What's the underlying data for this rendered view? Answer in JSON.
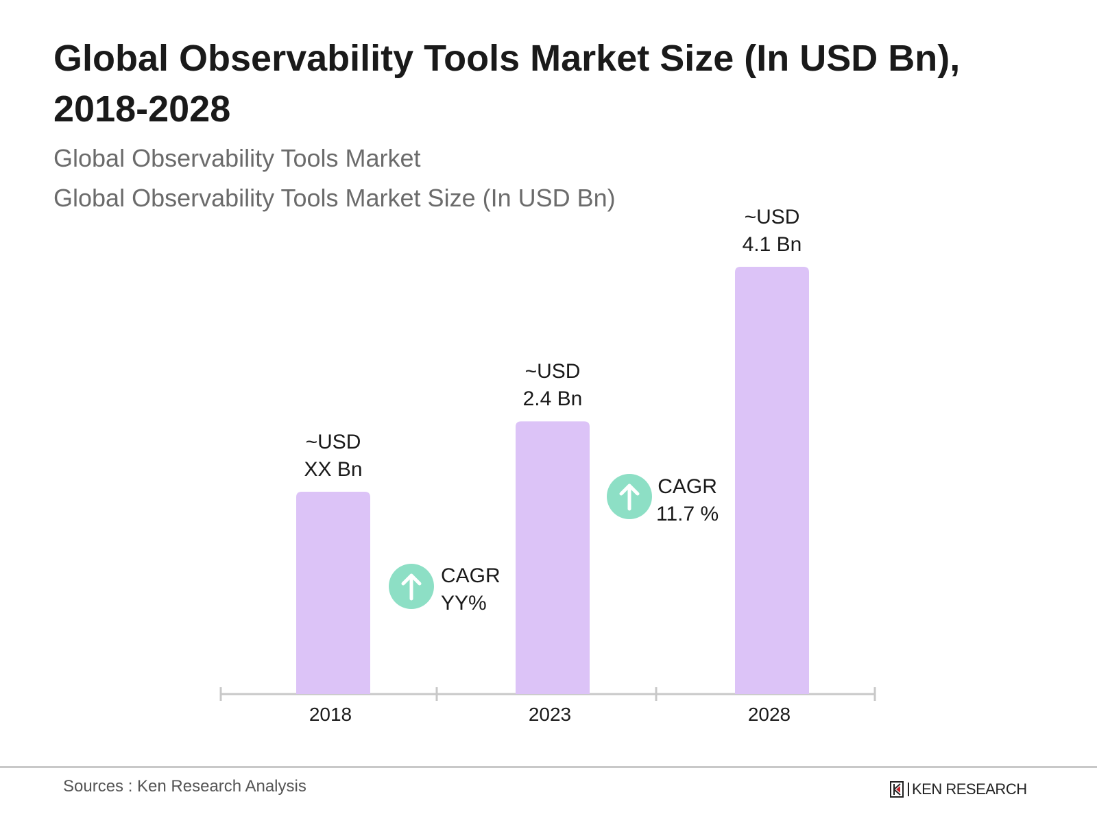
{
  "chart_data": {
    "type": "bar",
    "title": "Global Observability Tools Market Size (In USD Bn), 2018-2028",
    "subtitles": [
      "Global Observability Tools Market",
      "Global Observability Tools Market Size (In USD Bn)"
    ],
    "categories": [
      "2018",
      "2023",
      "2028"
    ],
    "values": [
      null,
      2.4,
      4.1
    ],
    "data_labels": [
      [
        "~USD",
        "XX Bn"
      ],
      [
        "~USD",
        "2.4 Bn"
      ],
      [
        "~USD",
        "4.1 Bn"
      ]
    ],
    "cagr": [
      {
        "label": "CAGR",
        "value": "YY%",
        "icon": "arrow-up-circle-icon"
      },
      {
        "label": "CAGR",
        "value": "11.7 %",
        "icon": "arrow-up-circle-icon"
      }
    ],
    "grid": false,
    "legend": "none",
    "colors": {
      "bar": "#dcc3f7",
      "cagr_icon": "#8ddfc5",
      "axis": "#c8c8c8"
    }
  },
  "footer": {
    "sources": "Sources : Ken Research Analysis",
    "logo": "KEN RESEARCH"
  }
}
